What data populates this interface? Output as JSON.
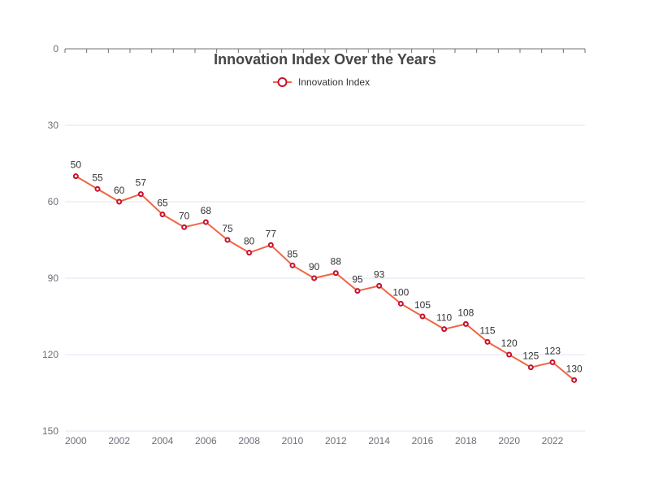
{
  "chart_data": {
    "type": "line",
    "title": "Innovation Index Over the Years",
    "x": [
      2000,
      2001,
      2002,
      2003,
      2004,
      2005,
      2006,
      2007,
      2008,
      2009,
      2010,
      2011,
      2012,
      2013,
      2014,
      2015,
      2016,
      2017,
      2018,
      2019,
      2020,
      2021,
      2022,
      2023
    ],
    "x_tick_labels": [
      "2000",
      "2002",
      "2004",
      "2006",
      "2008",
      "2010",
      "2012",
      "2014",
      "2016",
      "2018",
      "2020",
      "2022"
    ],
    "series": [
      {
        "name": "Innovation Index",
        "values": [
          50,
          55,
          60,
          57,
          65,
          70,
          68,
          75,
          80,
          77,
          85,
          90,
          88,
          95,
          93,
          100,
          105,
          110,
          108,
          115,
          120,
          125,
          123,
          130
        ]
      }
    ],
    "ylim": [
      0,
      150
    ],
    "y_inverse": true,
    "y_ticks": [
      0,
      30,
      60,
      90,
      120,
      150
    ],
    "xlabel": "",
    "ylabel": "",
    "grid": true,
    "legend_position": "top-center",
    "colors": {
      "line": "#ee6644",
      "marker": "#c8102e",
      "marker_fill": "#ffffff"
    }
  }
}
